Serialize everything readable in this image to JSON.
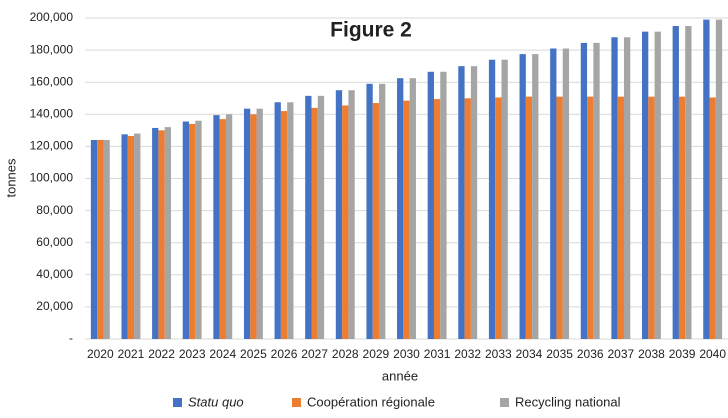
{
  "chart_data": {
    "type": "bar",
    "title": "Figure 2",
    "x_label": "année",
    "y_label": "tonnes",
    "categories": [
      "2020",
      "2021",
      "2022",
      "2023",
      "2024",
      "2025",
      "2026",
      "2027",
      "2028",
      "2029",
      "2030",
      "2031",
      "2032",
      "2033",
      "2034",
      "2035",
      "2036",
      "2037",
      "2038",
      "2039",
      "2040"
    ],
    "series": [
      {
        "name": "Statu quo",
        "color": "#4472c4",
        "values": [
          124000,
          127500,
          131500,
          135500,
          139500,
          143500,
          147500,
          151500,
          155000,
          159000,
          162500,
          166500,
          170000,
          174000,
          177500,
          181000,
          184500,
          188000,
          191500,
          195000,
          199000
        ]
      },
      {
        "name": "Coopération régionale",
        "color": "#ed7d31",
        "values": [
          124000,
          126500,
          130000,
          134000,
          137000,
          140000,
          142000,
          144000,
          145500,
          147000,
          148500,
          149500,
          150000,
          150500,
          151000,
          151000,
          151000,
          151000,
          151000,
          151000,
          150500
        ]
      },
      {
        "name": "Recycling national",
        "color": "#a5a5a5",
        "values": [
          124000,
          128000,
          132000,
          136000,
          140000,
          143500,
          147500,
          151500,
          155000,
          159000,
          162500,
          166500,
          170000,
          174000,
          177500,
          181000,
          184500,
          188000,
          191500,
          195000,
          199000
        ]
      }
    ],
    "ylim": [
      0,
      200000
    ],
    "yticks": [
      {
        "value": 0,
        "label": "-"
      },
      {
        "value": 20000,
        "label": "20,000"
      },
      {
        "value": 40000,
        "label": "40,000"
      },
      {
        "value": 60000,
        "label": "60,000"
      },
      {
        "value": 80000,
        "label": "80,000"
      },
      {
        "value": 100000,
        "label": "100,000"
      },
      {
        "value": 120000,
        "label": "120,000"
      },
      {
        "value": 140000,
        "label": "140,000"
      },
      {
        "value": 160000,
        "label": "160,000"
      },
      {
        "value": 180000,
        "label": "180,000"
      },
      {
        "value": 200000,
        "label": "200,000"
      }
    ],
    "grid": true,
    "legend": "bottom"
  }
}
